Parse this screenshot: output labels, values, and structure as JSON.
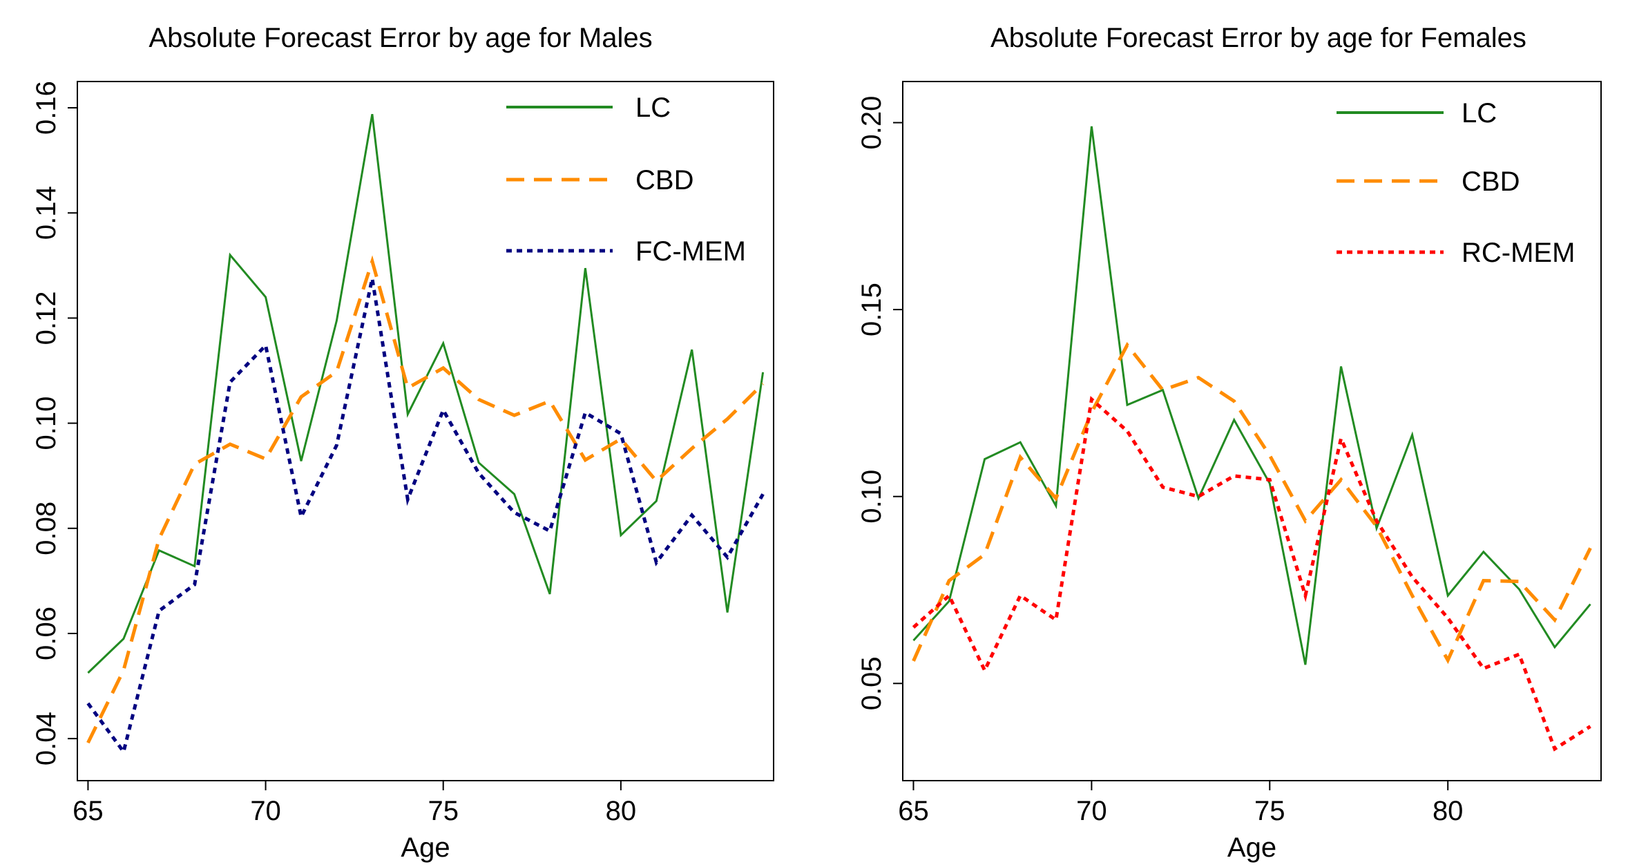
{
  "chart_data": [
    {
      "type": "line",
      "title": "Absolute Forecast Error by age for Males",
      "xlabel": "Age",
      "ylabel": "",
      "xlim": [
        64.7,
        84.3
      ],
      "ylim": [
        0.032,
        0.165
      ],
      "xticks": [
        65,
        70,
        75,
        80
      ],
      "yticks": [
        0.04,
        0.06,
        0.08,
        0.1,
        0.12,
        0.14,
        0.16
      ],
      "ytick_labels": [
        "0.04",
        "0.06",
        "0.08",
        "0.10",
        "0.12",
        "0.14",
        "0.16"
      ],
      "legend_position": "top-right",
      "x": [
        65,
        66,
        67,
        68,
        69,
        70,
        71,
        72,
        73,
        74,
        75,
        76,
        77,
        78,
        79,
        80,
        81,
        82,
        83,
        84
      ],
      "series": [
        {
          "name": "LC",
          "color": "#228B22",
          "dash": "solid",
          "values": [
            0.0525,
            0.059,
            0.0758,
            0.0728,
            0.132,
            0.124,
            0.0928,
            0.1195,
            0.1588,
            0.1017,
            0.1152,
            0.0925,
            0.0865,
            0.0675,
            0.1295,
            0.0787,
            0.0852,
            0.114,
            0.064,
            0.1097
          ]
        },
        {
          "name": "CBD",
          "color": "#FF8C00",
          "dash": "dashed",
          "values": [
            0.0392,
            0.053,
            0.078,
            0.0922,
            0.096,
            0.0932,
            0.105,
            0.1098,
            0.1308,
            0.1067,
            0.1105,
            0.1045,
            0.1015,
            0.1042,
            0.093,
            0.097,
            0.089,
            0.0952,
            0.1008,
            0.1075
          ]
        },
        {
          "name": "FC-MEM",
          "color": "#000080",
          "dash": "dotted",
          "values": [
            0.0467,
            0.0375,
            0.0643,
            0.0693,
            0.1078,
            0.1148,
            0.0822,
            0.0958,
            0.1275,
            0.0855,
            0.1025,
            0.0905,
            0.083,
            0.0795,
            0.102,
            0.098,
            0.0735,
            0.0825,
            0.0745,
            0.0865
          ]
        }
      ]
    },
    {
      "type": "line",
      "title": "Absolute Forecast Error by age for Females",
      "xlabel": "Age",
      "ylabel": "",
      "xlim": [
        64.7,
        84.3
      ],
      "ylim": [
        0.024,
        0.211
      ],
      "xticks": [
        65,
        70,
        75,
        80
      ],
      "yticks": [
        0.05,
        0.1,
        0.15,
        0.2
      ],
      "ytick_labels": [
        "0.05",
        "0.10",
        "0.15",
        "0.20"
      ],
      "legend_position": "top-right",
      "x": [
        65,
        66,
        67,
        68,
        69,
        70,
        71,
        72,
        73,
        74,
        75,
        76,
        77,
        78,
        79,
        80,
        81,
        82,
        83,
        84
      ],
      "series": [
        {
          "name": "LC",
          "color": "#228B22",
          "dash": "solid",
          "values": [
            0.0615,
            0.072,
            0.11,
            0.1145,
            0.0975,
            0.199,
            0.1245,
            0.1285,
            0.0995,
            0.1205,
            0.1035,
            0.055,
            0.1348,
            0.0915,
            0.1165,
            0.0735,
            0.0852,
            0.0752,
            0.0597,
            0.0712
          ]
        },
        {
          "name": "CBD",
          "color": "#FF8C00",
          "dash": "dashed",
          "values": [
            0.056,
            0.0775,
            0.0845,
            0.1105,
            0.0995,
            0.1225,
            0.1405,
            0.1285,
            0.1318,
            0.1255,
            0.111,
            0.0935,
            0.1045,
            0.092,
            0.0735,
            0.0562,
            0.0775,
            0.0773,
            0.067,
            0.0862
          ]
        },
        {
          "name": "RC-MEM",
          "color": "#FF0000",
          "dash": "dotted",
          "values": [
            0.065,
            0.0735,
            0.0535,
            0.0735,
            0.067,
            0.126,
            0.1175,
            0.1025,
            0.1,
            0.1055,
            0.1045,
            0.0735,
            0.1155,
            0.0935,
            0.0785,
            0.0675,
            0.054,
            0.0578,
            0.0325,
            0.0385
          ]
        }
      ]
    }
  ]
}
